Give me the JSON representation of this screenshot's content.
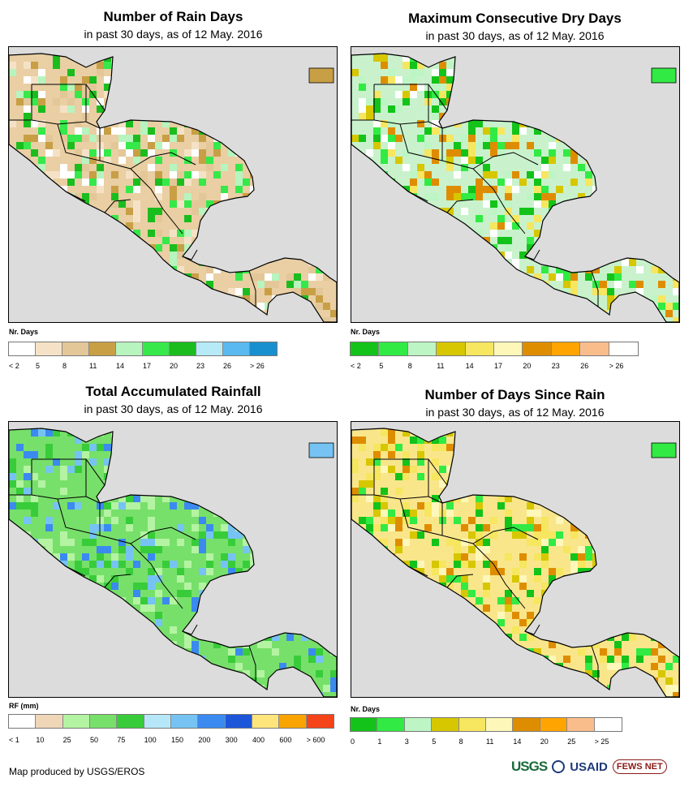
{
  "panels": [
    {
      "id": "rain-days",
      "title": "Number of Rain Days",
      "subtitle": "in past 30 days, as of 12 May. 2016",
      "legend_label": "Nr. Days",
      "legend_colors": [
        "#ffffff",
        "#f5e2c6",
        "#e4c798",
        "#c89f45",
        "#b7f4be",
        "#36e84a",
        "#1bbd1e",
        "#b5eaf6",
        "#5ab9ef",
        "#1890cf"
      ],
      "legend_ticks": [
        "< 2",
        "5",
        "8",
        "11",
        "14",
        "17",
        "20",
        "23",
        "26",
        "> 26"
      ],
      "land_base": "#e9cfa3",
      "land_mix": [
        "#f5e2c6",
        "#e4c798",
        "#c89f45",
        "#ffffff",
        "#b7f4be",
        "#36e84a",
        "#1bbd1e"
      ]
    },
    {
      "id": "max-dry-days",
      "title": "Maximum Consecutive Dry Days",
      "subtitle": "in past 30 days, as of 12 May. 2016",
      "legend_label": "Nr. Days",
      "legend_colors": [
        "#13c31a",
        "#32ea44",
        "#bdf5c4",
        "#d6c700",
        "#f6e660",
        "#fdf7b9",
        "#df8d00",
        "#ffa400",
        "#f9bd8c",
        "#ffffff"
      ],
      "legend_ticks": [
        "< 2",
        "5",
        "8",
        "11",
        "14",
        "17",
        "20",
        "23",
        "26",
        "> 26"
      ],
      "land_base": "#c9f2cc",
      "land_mix": [
        "#d6c700",
        "#f6e660",
        "#32ea44",
        "#13c31a",
        "#bdf5c4",
        "#df8d00",
        "#ffffff"
      ]
    },
    {
      "id": "total-rainfall",
      "title": "Total Accumulated Rainfall",
      "subtitle": "in past 30 days, as of 12 May. 2016",
      "legend_label": "RF (mm)",
      "legend_colors": [
        "#ffffff",
        "#efd6b7",
        "#b4f3a2",
        "#77e06a",
        "#38cc3a",
        "#b6e7f8",
        "#76c3f3",
        "#3b8af0",
        "#1d56d9",
        "#fde57c",
        "#f9a400",
        "#f5431a"
      ],
      "legend_ticks": [
        "< 1",
        "10",
        "25",
        "50",
        "75",
        "100",
        "150",
        "200",
        "300",
        "400",
        "600",
        "> 600"
      ],
      "land_base": "#77e06a",
      "land_mix": [
        "#b4f3a2",
        "#38cc3a",
        "#76c3f3",
        "#3b8af0",
        "#b4f3a2",
        "#77e06a",
        "#38cc3a"
      ]
    },
    {
      "id": "days-since-rain",
      "title": "Number of Days Since Rain",
      "subtitle": "in past 30 days, as of 12 May. 2016",
      "legend_label": "Nr. Days",
      "legend_colors": [
        "#13c31a",
        "#32ea44",
        "#bdf5c4",
        "#d6c700",
        "#f6e660",
        "#fdf7b9",
        "#df8d00",
        "#ffa400",
        "#f9bd8c",
        "#ffffff"
      ],
      "legend_ticks": [
        "0",
        "1",
        "3",
        "5",
        "8",
        "11",
        "14",
        "20",
        "25",
        "> 25"
      ],
      "land_base": "#f9e68b",
      "land_mix": [
        "#f6e660",
        "#d6c700",
        "#32ea44",
        "#13c31a",
        "#fdf7b9",
        "#df8d00",
        "#f6e660"
      ]
    }
  ],
  "credit": "Map produced by USGS/EROS",
  "logos": {
    "usgs": "USGS",
    "usaid": "USAID",
    "fews": "FEWS NET"
  }
}
